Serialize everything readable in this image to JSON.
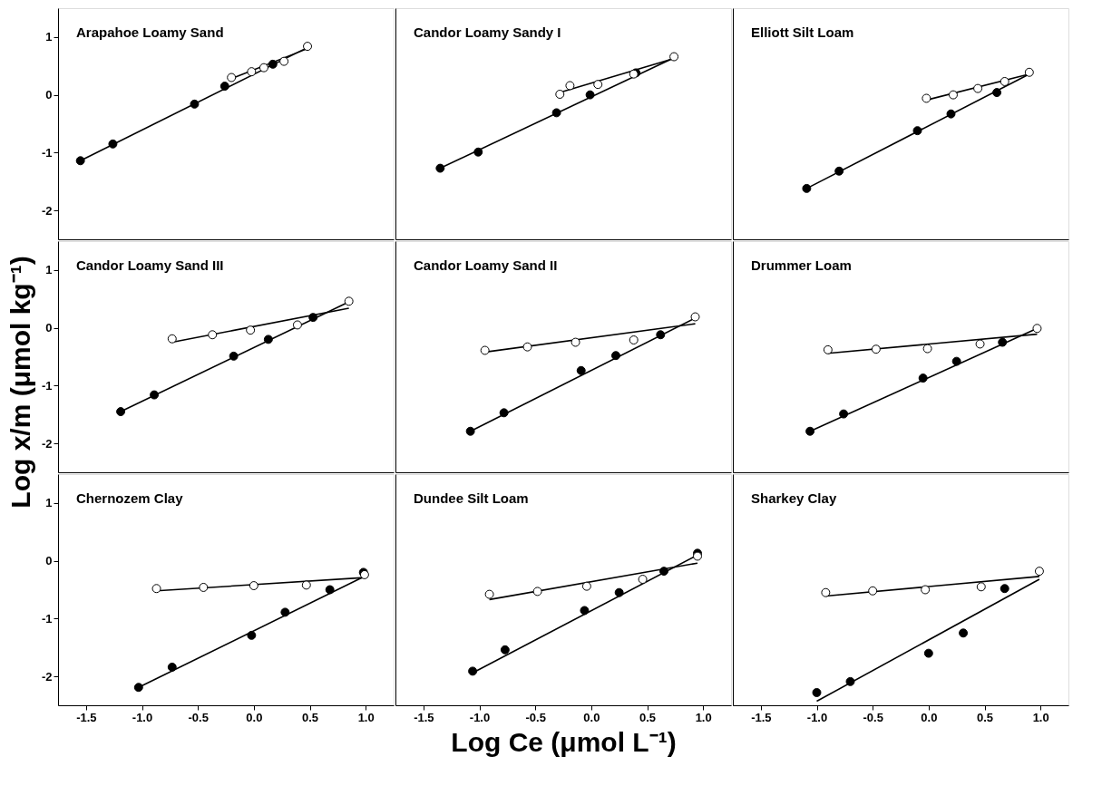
{
  "chart_data": [
    {
      "type": "scatter",
      "title": "Arapahoe Loamy Sand",
      "marker": "circle",
      "xlim": [
        -1.75,
        1.25
      ],
      "ylim": [
        -2.5,
        1.5
      ],
      "xticks": [
        -1.5,
        -1,
        -0.5,
        0,
        0.5,
        1
      ],
      "yticks": [
        -2,
        -1,
        0,
        1
      ],
      "tick_labels": "y",
      "grid": false,
      "series": [
        {
          "type": "line",
          "marker": "none",
          "color": "#000000",
          "x": [
            -1.55,
            0.48
          ],
          "values": [
            -1.14,
            0.82
          ]
        },
        {
          "type": "line",
          "marker": "none",
          "color": "#000000",
          "x": [
            -0.2,
            0.48
          ],
          "values": [
            0.28,
            0.8
          ]
        },
        {
          "color": "#000000",
          "x": [
            -1.55,
            -1.26,
            -0.53,
            -0.26,
            0.17
          ],
          "values": [
            -1.14,
            -0.85,
            -0.16,
            0.15,
            0.53
          ]
        },
        {
          "color": "#ffffff",
          "x": [
            -0.2,
            -0.02,
            0.09,
            0.27,
            0.48
          ],
          "values": [
            0.3,
            0.4,
            0.47,
            0.58,
            0.84
          ]
        }
      ]
    },
    {
      "type": "scatter",
      "title": "Candor Loamy Sandy I",
      "marker": "circle",
      "xlim": [
        -1.75,
        1.25
      ],
      "ylim": [
        -2.5,
        1.5
      ],
      "xticks": [
        -1.5,
        -1,
        -0.5,
        0,
        0.5,
        1
      ],
      "yticks": [
        -2,
        -1,
        0,
        1
      ],
      "tick_labels": false,
      "grid": false,
      "series": [
        {
          "type": "line",
          "marker": "none",
          "color": "#000000",
          "x": [
            -1.35,
            0.74
          ],
          "values": [
            -1.27,
            0.64
          ]
        },
        {
          "type": "line",
          "marker": "none",
          "color": "#000000",
          "x": [
            -0.28,
            0.74
          ],
          "values": [
            0.04,
            0.63
          ]
        },
        {
          "color": "#000000",
          "x": [
            -1.35,
            -1.01,
            -0.31,
            -0.01,
            0.4
          ],
          "values": [
            -1.27,
            -0.99,
            -0.31,
            0.0,
            0.38
          ]
        },
        {
          "color": "#ffffff",
          "x": [
            -0.28,
            -0.19,
            0.06,
            0.38,
            0.74
          ],
          "values": [
            0.01,
            0.16,
            0.18,
            0.36,
            0.66
          ]
        }
      ]
    },
    {
      "type": "scatter",
      "title": "Elliott Silt Loam",
      "marker": "circle",
      "xlim": [
        -1.75,
        1.25
      ],
      "ylim": [
        -2.5,
        1.5
      ],
      "xticks": [
        -1.5,
        -1,
        -0.5,
        0,
        0.5,
        1
      ],
      "yticks": [
        -2,
        -1,
        0,
        1
      ],
      "tick_labels": false,
      "grid": false,
      "series": [
        {
          "type": "line",
          "marker": "none",
          "color": "#000000",
          "x": [
            -1.09,
            0.9
          ],
          "values": [
            -1.62,
            0.36
          ]
        },
        {
          "type": "line",
          "marker": "none",
          "color": "#000000",
          "x": [
            -0.02,
            0.9
          ],
          "values": [
            -0.09,
            0.36
          ]
        },
        {
          "color": "#000000",
          "x": [
            -1.09,
            -0.8,
            -0.1,
            0.2,
            0.61
          ],
          "values": [
            -1.62,
            -1.32,
            -0.62,
            -0.33,
            0.04
          ]
        },
        {
          "color": "#ffffff",
          "x": [
            -0.02,
            0.22,
            0.44,
            0.68,
            0.9
          ],
          "values": [
            -0.06,
            0.0,
            0.11,
            0.23,
            0.39
          ]
        }
      ]
    },
    {
      "type": "scatter",
      "title": "Candor Loamy Sand III",
      "ylabel": "Log x/m (μmol kg⁻¹)",
      "marker": "circle",
      "xlim": [
        -1.75,
        1.25
      ],
      "ylim": [
        -2.5,
        1.5
      ],
      "xticks": [
        -1.5,
        -1,
        -0.5,
        0,
        0.5,
        1
      ],
      "yticks": [
        -2,
        -1,
        0,
        1
      ],
      "tick_labels": "y",
      "grid": false,
      "series": [
        {
          "type": "line",
          "marker": "none",
          "color": "#000000",
          "x": [
            -1.19,
            0.85
          ],
          "values": [
            -1.45,
            0.45
          ]
        },
        {
          "type": "line",
          "marker": "none",
          "color": "#000000",
          "x": [
            -0.73,
            0.85
          ],
          "values": [
            -0.25,
            0.34
          ]
        },
        {
          "color": "#000000",
          "x": [
            -1.19,
            -0.89,
            -0.18,
            0.13,
            0.53
          ],
          "values": [
            -1.45,
            -1.16,
            -0.49,
            -0.2,
            0.18
          ]
        },
        {
          "color": "#ffffff",
          "x": [
            -0.73,
            -0.37,
            -0.03,
            0.39,
            0.85
          ],
          "values": [
            -0.19,
            -0.12,
            -0.04,
            0.05,
            0.46
          ]
        }
      ]
    },
    {
      "type": "scatter",
      "title": "Candor Loamy Sand II",
      "marker": "circle",
      "xlim": [
        -1.75,
        1.25
      ],
      "ylim": [
        -2.5,
        1.5
      ],
      "xticks": [
        -1.5,
        -1,
        -0.5,
        0,
        0.5,
        1
      ],
      "yticks": [
        -2,
        -1,
        0,
        1
      ],
      "tick_labels": false,
      "grid": false,
      "series": [
        {
          "type": "line",
          "marker": "none",
          "color": "#000000",
          "x": [
            -1.08,
            0.93
          ],
          "values": [
            -1.79,
            0.17
          ]
        },
        {
          "type": "line",
          "marker": "none",
          "color": "#000000",
          "x": [
            -0.95,
            0.93
          ],
          "values": [
            -0.42,
            0.07
          ]
        },
        {
          "color": "#000000",
          "x": [
            -1.08,
            -0.78,
            -0.09,
            0.22,
            0.62
          ],
          "values": [
            -1.79,
            -1.47,
            -0.74,
            -0.48,
            -0.12
          ]
        },
        {
          "color": "#ffffff",
          "x": [
            -0.95,
            -0.57,
            -0.14,
            0.38,
            0.93
          ],
          "values": [
            -0.39,
            -0.33,
            -0.25,
            -0.21,
            0.19
          ]
        }
      ]
    },
    {
      "type": "scatter",
      "title": "Drummer Loam",
      "marker": "circle",
      "xlim": [
        -1.75,
        1.25
      ],
      "ylim": [
        -2.5,
        1.5
      ],
      "xticks": [
        -1.5,
        -1,
        -0.5,
        0,
        0.5,
        1
      ],
      "yticks": [
        -2,
        -1,
        0,
        1
      ],
      "tick_labels": false,
      "grid": false,
      "series": [
        {
          "type": "line",
          "marker": "none",
          "color": "#000000",
          "x": [
            -1.06,
            0.97
          ],
          "values": [
            -1.79,
            -0.01
          ]
        },
        {
          "type": "line",
          "marker": "none",
          "color": "#000000",
          "x": [
            -0.9,
            0.97
          ],
          "values": [
            -0.44,
            -0.11
          ]
        },
        {
          "color": "#000000",
          "x": [
            -1.06,
            -0.76,
            -0.05,
            0.25,
            0.66
          ],
          "values": [
            -1.79,
            -1.49,
            -0.87,
            -0.58,
            -0.25
          ]
        },
        {
          "color": "#ffffff",
          "x": [
            -0.9,
            -0.47,
            -0.01,
            0.46,
            0.97
          ],
          "values": [
            -0.38,
            -0.37,
            -0.36,
            -0.28,
            -0.01
          ]
        }
      ]
    },
    {
      "type": "scatter",
      "title": "Chernozem Clay",
      "marker": "circle",
      "xlim": [
        -1.75,
        1.25
      ],
      "ylim": [
        -2.5,
        1.5
      ],
      "xticks": [
        -1.5,
        {
          "value": -1,
          "label": "-1.0"
        },
        -0.5,
        {
          "value": 0,
          "label": "0.0"
        },
        0.5,
        {
          "value": 1,
          "label": "1.0"
        }
      ],
      "yticks": [
        -2,
        -1,
        0,
        1
      ],
      "grid": false,
      "series": [
        {
          "type": "line",
          "marker": "none",
          "color": "#000000",
          "x": [
            -1.03,
            0.99
          ],
          "values": [
            -2.19,
            -0.27
          ]
        },
        {
          "type": "line",
          "marker": "none",
          "color": "#000000",
          "x": [
            -0.87,
            0.99
          ],
          "values": [
            -0.52,
            -0.29
          ]
        },
        {
          "color": "#000000",
          "x": [
            -1.03,
            -0.73,
            -0.02,
            0.28,
            0.68,
            0.98
          ],
          "values": [
            -2.19,
            -1.84,
            -1.29,
            -0.89,
            -0.5,
            -0.2
          ]
        },
        {
          "color": "#ffffff",
          "x": [
            -0.87,
            -0.45,
            0.0,
            0.47,
            0.99
          ],
          "values": [
            -0.48,
            -0.46,
            -0.43,
            -0.42,
            -0.24
          ]
        }
      ]
    },
    {
      "type": "scatter",
      "title": "Dundee Silt Loam",
      "xlabel": "Log Ce (μmol L⁻¹)",
      "marker": "circle",
      "xlim": [
        -1.75,
        1.25
      ],
      "ylim": [
        -2.5,
        1.5
      ],
      "xticks": [
        -1.5,
        {
          "value": -1,
          "label": "-1.0"
        },
        -0.5,
        {
          "value": 0,
          "label": "0.0"
        },
        0.5,
        {
          "value": 1,
          "label": "1.0"
        }
      ],
      "yticks": [
        -2,
        -1,
        0,
        1
      ],
      "tick_labels": "x",
      "grid": false,
      "series": [
        {
          "type": "line",
          "marker": "none",
          "color": "#000000",
          "x": [
            -1.06,
            0.95
          ],
          "values": [
            -1.94,
            0.1
          ]
        },
        {
          "type": "line",
          "marker": "none",
          "color": "#000000",
          "x": [
            -0.91,
            0.95
          ],
          "values": [
            -0.67,
            -0.04
          ]
        },
        {
          "color": "#000000",
          "x": [
            -1.06,
            -0.77,
            -0.06,
            0.25,
            0.65,
            0.95
          ],
          "values": [
            -1.91,
            -1.54,
            -0.86,
            -0.55,
            -0.18,
            0.13
          ]
        },
        {
          "color": "#ffffff",
          "x": [
            -0.91,
            -0.48,
            -0.04,
            0.46,
            0.95
          ],
          "values": [
            -0.58,
            -0.53,
            -0.44,
            -0.32,
            0.08
          ]
        }
      ]
    },
    {
      "type": "scatter",
      "title": "Sharkey Clay",
      "marker": "circle",
      "xlim": [
        -1.75,
        1.25
      ],
      "ylim": [
        -2.5,
        1.5
      ],
      "xticks": [
        -1.5,
        {
          "value": -1,
          "label": "-1.0"
        },
        -0.5,
        {
          "value": 0,
          "label": "0.0"
        },
        0.5,
        {
          "value": 1,
          "label": "1.0"
        }
      ],
      "yticks": [
        -2,
        -1,
        0,
        1
      ],
      "tick_labels": "x",
      "grid": false,
      "series": [
        {
          "type": "line",
          "marker": "none",
          "color": "#000000",
          "x": [
            -1.0,
            0.99
          ],
          "values": [
            -2.43,
            -0.32
          ]
        },
        {
          "type": "line",
          "marker": "none",
          "color": "#000000",
          "x": [
            -0.92,
            0.99
          ],
          "values": [
            -0.61,
            -0.27
          ]
        },
        {
          "color": "#000000",
          "x": [
            -1.0,
            -0.7,
            0.0,
            0.31,
            0.68
          ],
          "values": [
            -2.28,
            -2.09,
            -1.6,
            -1.25,
            -0.48
          ]
        },
        {
          "color": "#ffffff",
          "x": [
            -0.92,
            -0.5,
            -0.03,
            0.47,
            0.99
          ],
          "values": [
            -0.55,
            -0.52,
            -0.5,
            -0.45,
            -0.18
          ]
        }
      ]
    }
  ]
}
